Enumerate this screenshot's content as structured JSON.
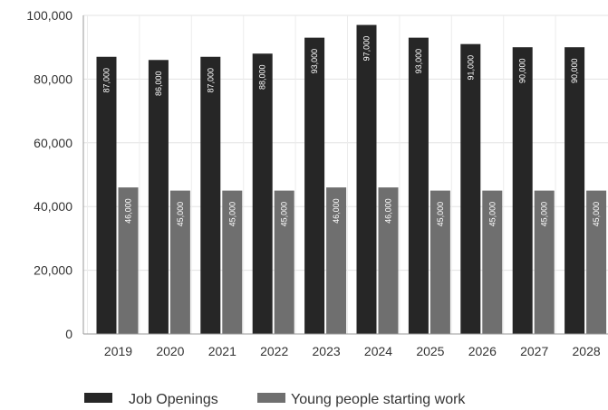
{
  "chart_data": {
    "type": "bar",
    "categories": [
      "2019",
      "2020",
      "2021",
      "2022",
      "2023",
      "2024",
      "2025",
      "2026",
      "2027",
      "2028"
    ],
    "series": [
      {
        "name": "Job Openings",
        "values": [
          87000,
          86000,
          87000,
          88000,
          93000,
          97000,
          93000,
          91000,
          90000,
          90000
        ],
        "color": "#262626"
      },
      {
        "name": "Young people starting work",
        "values": [
          46000,
          45000,
          45000,
          45000,
          46000,
          46000,
          45000,
          45000,
          45000,
          45000
        ],
        "color": "#6f6f6f"
      }
    ],
    "ylim": [
      0,
      100000
    ],
    "yticks": [
      0,
      20000,
      40000,
      60000,
      80000,
      100000
    ],
    "ytick_labels": [
      "0",
      "20,000",
      "40,000",
      "60,000",
      "80,000",
      "100,000"
    ],
    "data_labels": [
      [
        "87,000",
        "86,000",
        "87,000",
        "88,000",
        "93,000",
        "97,000",
        "93,000",
        "91,000",
        "90,000",
        "90,000"
      ],
      [
        "46,000",
        "45,000",
        "45,000",
        "45,000",
        "46,000",
        "46,000",
        "45,000",
        "45,000",
        "45,000",
        "45,000"
      ]
    ],
    "grid": true,
    "legend": "bottom",
    "title": "",
    "xlabel": "",
    "ylabel": ""
  },
  "legend": {
    "items": [
      {
        "label": "Job Openings"
      },
      {
        "label": "Young people starting work"
      }
    ]
  }
}
